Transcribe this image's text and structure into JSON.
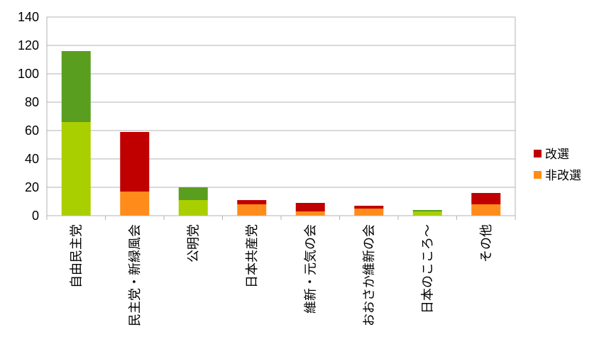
{
  "chart_data": {
    "type": "bar",
    "stacked": true,
    "categories": [
      "自由民主党",
      "民主党・新緑風会",
      "公明党",
      "日本共産党",
      "維新・元気の会",
      "おおさか維新の会",
      "日本のこころ～",
      "その他"
    ],
    "series": [
      {
        "name": "非改選",
        "values": [
          66,
          17,
          11,
          8,
          3,
          5,
          3,
          8
        ]
      },
      {
        "name": "改選",
        "values": [
          50,
          42,
          9,
          3,
          6,
          2,
          1,
          8
        ]
      }
    ],
    "ylim": [
      0,
      140
    ],
    "yticks": [
      0,
      20,
      40,
      60,
      80,
      100,
      120,
      140
    ],
    "grid": true,
    "legend_position": "right",
    "legend": [
      {
        "label": "改選",
        "color": "#c00000"
      },
      {
        "label": "非改選",
        "color": "#ff8c1a"
      }
    ],
    "colors": {
      "改選": "#c00000",
      "非改選": "#ff8c1a",
      "改選_alt": "#5a9e20",
      "非改選_alt": "#aacf00"
    },
    "green_categories": [
      0,
      2,
      6
    ],
    "title": "",
    "xlabel": "",
    "ylabel": ""
  }
}
